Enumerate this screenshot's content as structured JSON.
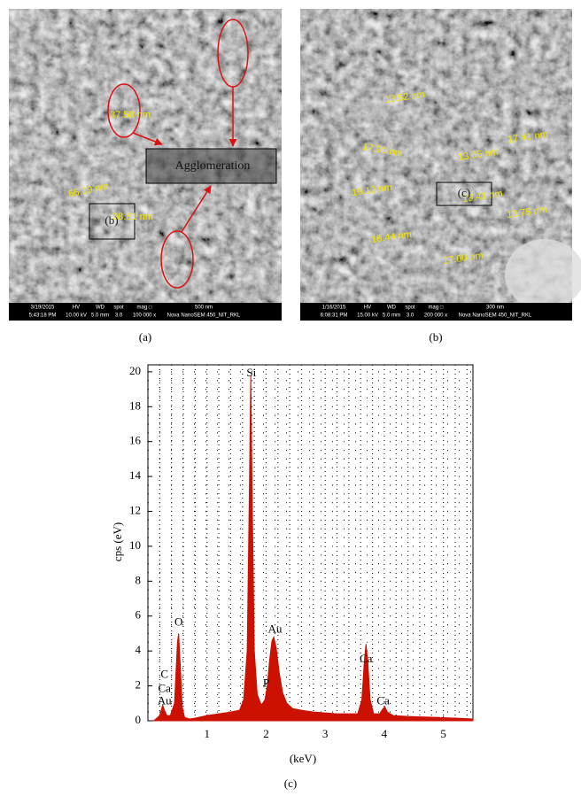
{
  "images": [
    {
      "caption": "(a)",
      "labels": [
        "37.58 nm",
        "66.19 nm",
        "38.81 nm"
      ],
      "boxes": [
        "Agglomeration",
        "(b)"
      ],
      "info": [
        [
          "3/19/2015",
          "5:43:18 PM"
        ],
        [
          "HV",
          "10.00 kV"
        ],
        [
          "WD",
          "5.0 mm"
        ],
        [
          "spot",
          "3.0"
        ],
        [
          "mag □",
          "100 000 x"
        ],
        [
          "500 nm",
          "Nova NanoSEM 450_NIT_RKL"
        ]
      ]
    },
    {
      "caption": "(b)",
      "labels": [
        "13.52 nm",
        "17.90 nm",
        "13.05 nm",
        "17.41 nm",
        "19.12 nm",
        "19.41 nm",
        "13.75 nm",
        "16.44 nm",
        "17.00 nm"
      ],
      "boxes": [
        "(c)"
      ],
      "info": [
        [
          "1/16/2015",
          "6:08:31 PM"
        ],
        [
          "HV",
          "15.00 kV"
        ],
        [
          "WD",
          "5.0 mm"
        ],
        [
          "spot",
          "3.0"
        ],
        [
          "mag □",
          "200 000 x"
        ],
        [
          "300 nm",
          "Nova NanoSEM 450_NIT_RKL"
        ]
      ]
    }
  ],
  "chart_data": {
    "type": "area",
    "caption": "(c)",
    "x_label": "(keV)",
    "y_label": "cps (eV)",
    "x": [
      0.1,
      0.2,
      0.25,
      0.28,
      0.32,
      0.38,
      0.45,
      0.5,
      0.52,
      0.55,
      0.58,
      0.62,
      0.7,
      0.8,
      1.0,
      1.2,
      1.4,
      1.55,
      1.62,
      1.68,
      1.72,
      1.74,
      1.76,
      1.8,
      1.85,
      1.92,
      1.98,
      2.02,
      2.06,
      2.1,
      2.13,
      2.17,
      2.22,
      2.28,
      2.35,
      2.45,
      2.6,
      2.8,
      3.0,
      3.2,
      3.4,
      3.55,
      3.62,
      3.66,
      3.69,
      3.72,
      3.76,
      3.82,
      3.92,
      3.98,
      4.01,
      4.05,
      4.15,
      4.4,
      4.8,
      5.2,
      5.5
    ],
    "values": [
      0,
      0.3,
      0.9,
      0.6,
      0.3,
      0.3,
      1.0,
      4.5,
      5.0,
      3.0,
      0.8,
      0.2,
      0.1,
      0.15,
      0.3,
      0.4,
      0.5,
      0.6,
      1.2,
      4,
      14,
      19.8,
      14,
      4,
      1.5,
      0.9,
      1.2,
      2.0,
      3.5,
      4.6,
      4.8,
      4.2,
      2.8,
      1.6,
      1.0,
      0.7,
      0.6,
      0.5,
      0.45,
      0.4,
      0.4,
      0.4,
      1.2,
      3.3,
      4.4,
      3.4,
      1.2,
      0.4,
      0.4,
      0.7,
      0.8,
      0.5,
      0.3,
      0.25,
      0.2,
      0.15,
      0.1
    ],
    "color": "#cc1100",
    "xlim": [
      0,
      5.5
    ],
    "ylim": [
      0,
      20.4
    ],
    "xticks": [
      1,
      2,
      3,
      4,
      5
    ],
    "yticks": [
      0,
      2,
      4,
      6,
      8,
      10,
      12,
      14,
      16,
      18,
      20
    ],
    "grid": true,
    "peak_labels": [
      {
        "text": "C",
        "x": 0.28,
        "y": 2.6
      },
      {
        "text": "Ca",
        "x": 0.28,
        "y": 1.8
      },
      {
        "text": "Au",
        "x": 0.28,
        "y": 1.1
      },
      {
        "text": "O",
        "x": 0.52,
        "y": 5.6
      },
      {
        "text": "Si",
        "x": 1.75,
        "y": 19.9
      },
      {
        "text": "Au",
        "x": 2.15,
        "y": 5.2
      },
      {
        "text": "P",
        "x": 2.0,
        "y": 2.1
      },
      {
        "text": "Ca",
        "x": 3.69,
        "y": 3.5
      },
      {
        "text": "Ca",
        "x": 3.98,
        "y": 1.1
      }
    ]
  }
}
